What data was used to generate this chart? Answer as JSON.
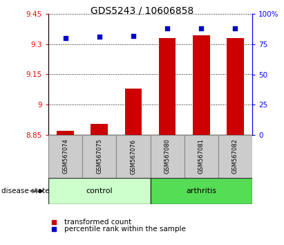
{
  "title": "GDS5243 / 10606858",
  "samples": [
    "GSM567074",
    "GSM567075",
    "GSM567076",
    "GSM567080",
    "GSM567081",
    "GSM567082"
  ],
  "transformed_counts": [
    8.87,
    8.905,
    9.08,
    9.33,
    9.345,
    9.33
  ],
  "percentile_ranks": [
    80,
    81,
    82,
    88,
    88,
    88
  ],
  "bar_bottom": 8.85,
  "ylim_left": [
    8.85,
    9.45
  ],
  "ylim_right": [
    0,
    100
  ],
  "yticks_left": [
    8.85,
    9.0,
    9.15,
    9.3,
    9.45
  ],
  "ytick_labels_left": [
    "8.85",
    "9",
    "9.15",
    "9.3",
    "9.45"
  ],
  "yticks_right": [
    0,
    25,
    50,
    75,
    100
  ],
  "ytick_labels_right": [
    "0",
    "25",
    "50",
    "75",
    "100%"
  ],
  "groups": [
    {
      "label": "control",
      "n": 3,
      "color": "#ccffcc"
    },
    {
      "label": "arthritis",
      "n": 3,
      "color": "#55dd55"
    }
  ],
  "bar_color": "#cc0000",
  "dot_color": "#0000cc",
  "label_disease_state": "disease state",
  "legend_bar_label": "transformed count",
  "legend_dot_label": "percentile rank within the sample",
  "title_fontsize": 10,
  "tick_fontsize": 7.5,
  "sample_fontsize": 6,
  "disease_fontsize": 8,
  "legend_fontsize": 7.5
}
